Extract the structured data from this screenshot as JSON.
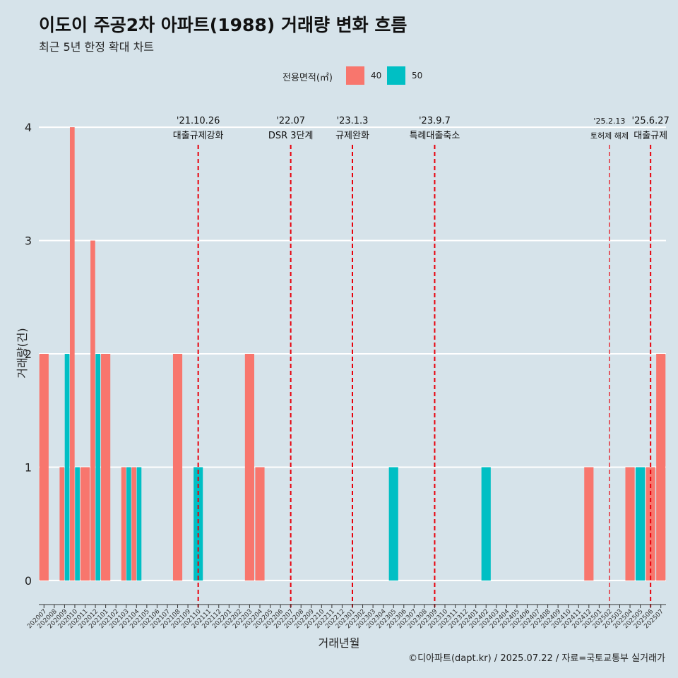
{
  "header": {
    "title": "이도이 주공2차 아파트(1988) 거래량 변화 흐름",
    "subtitle": "최근 5년 한정 확대 차트"
  },
  "legend": {
    "title": "전용면적(㎡)",
    "items": [
      {
        "label": "40",
        "color": "#f8766d"
      },
      {
        "label": "50",
        "color": "#00bfc4"
      }
    ]
  },
  "footer": {
    "caption": "©디아파트(dapt.kr) / 2025.07.22 / 자료=국토교통부 실거래가"
  },
  "colors": {
    "background": "#d6e3ea",
    "grid": "#ffffff",
    "event_line": "#e8000b",
    "series_40": "#f8766d",
    "series_50": "#00bfc4"
  },
  "chart_data": {
    "type": "bar",
    "xlabel": "거래년월",
    "ylabel": "거래량(건)",
    "ylim": [
      -0.15,
      4.25
    ],
    "yticks": [
      0,
      1,
      2,
      3,
      4
    ],
    "grid": true,
    "legend_position": "top",
    "categories": [
      "202007",
      "202008",
      "202009",
      "202010",
      "202011",
      "202012",
      "202101",
      "202102",
      "202103",
      "202104",
      "202105",
      "202106",
      "202107",
      "202108",
      "202109",
      "202110",
      "202111",
      "202112",
      "202201",
      "202202",
      "202203",
      "202204",
      "202205",
      "202206",
      "202207",
      "202208",
      "202209",
      "202210",
      "202211",
      "202212",
      "202301",
      "202302",
      "202303",
      "202304",
      "202305",
      "202306",
      "202307",
      "202308",
      "202309",
      "202310",
      "202311",
      "202312",
      "202401",
      "202402",
      "202403",
      "202404",
      "202405",
      "202406",
      "202407",
      "202408",
      "202409",
      "202410",
      "202411",
      "202412",
      "202501",
      "202502",
      "202503",
      "202504",
      "202505",
      "202506",
      "202507"
    ],
    "series": [
      {
        "name": "40",
        "color": "#f8766d",
        "values": [
          2,
          null,
          1,
          4,
          1,
          3,
          2,
          null,
          1,
          1,
          null,
          null,
          null,
          2,
          null,
          null,
          null,
          null,
          null,
          null,
          2,
          1,
          null,
          null,
          null,
          null,
          null,
          null,
          null,
          null,
          null,
          null,
          null,
          null,
          null,
          null,
          null,
          null,
          null,
          null,
          null,
          null,
          null,
          null,
          null,
          null,
          null,
          null,
          null,
          null,
          null,
          null,
          null,
          1,
          null,
          null,
          null,
          1,
          null,
          1,
          2
        ]
      },
      {
        "name": "50",
        "color": "#00bfc4",
        "values": [
          null,
          null,
          2,
          1,
          null,
          2,
          null,
          null,
          1,
          1,
          null,
          null,
          null,
          null,
          null,
          1,
          null,
          null,
          null,
          null,
          null,
          null,
          null,
          null,
          null,
          null,
          null,
          null,
          null,
          null,
          null,
          null,
          null,
          null,
          1,
          null,
          null,
          null,
          null,
          null,
          null,
          null,
          null,
          1,
          null,
          null,
          null,
          null,
          null,
          null,
          null,
          null,
          null,
          null,
          null,
          null,
          null,
          null,
          1,
          null,
          null
        ]
      }
    ],
    "events": [
      {
        "month": "202110",
        "date": "'21.10.26",
        "label": "대출규제강화",
        "small": false
      },
      {
        "month": "202207",
        "date": "'22.07",
        "label": "DSR 3단계",
        "small": false
      },
      {
        "month": "202301",
        "date": "'23.1.3",
        "label": "규제완화",
        "small": false
      },
      {
        "month": "202309",
        "date": "'23.9.7",
        "label": "특례대출축소",
        "small": false
      },
      {
        "month": "202502",
        "date": "'25.2.13",
        "label": "토허제 해제",
        "small": true
      },
      {
        "month": "202506",
        "date": "'25.6.27",
        "label": "대출규제",
        "small": false
      }
    ]
  }
}
